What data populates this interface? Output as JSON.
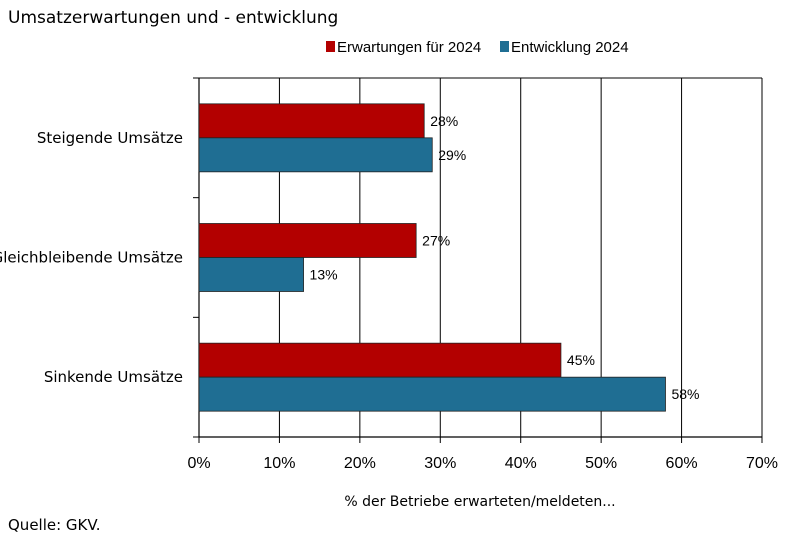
{
  "chart_data": {
    "type": "bar",
    "orientation": "horizontal",
    "title": "Umsatzerwartungen und - entwicklung",
    "categories": [
      "Steigende Umsätze",
      "Gleichbleibende Umsätze",
      "Sinkende Umsätze"
    ],
    "series": [
      {
        "name": "Erwartungen für 2024",
        "color": "#b30000",
        "values": [
          28,
          27,
          45
        ]
      },
      {
        "name": "Entwicklung 2024",
        "color": "#1f6e93",
        "values": [
          29,
          13,
          58
        ]
      }
    ],
    "xlim": [
      0,
      70
    ],
    "xticks": [
      0,
      10,
      20,
      30,
      40,
      50,
      60,
      70
    ],
    "tick_suffix": "%",
    "xlabel": "% der Betriebe erwarteten/meldeten...",
    "ylabel": "",
    "grid": true,
    "legend_position": "top"
  },
  "source": "Quelle: GKV."
}
